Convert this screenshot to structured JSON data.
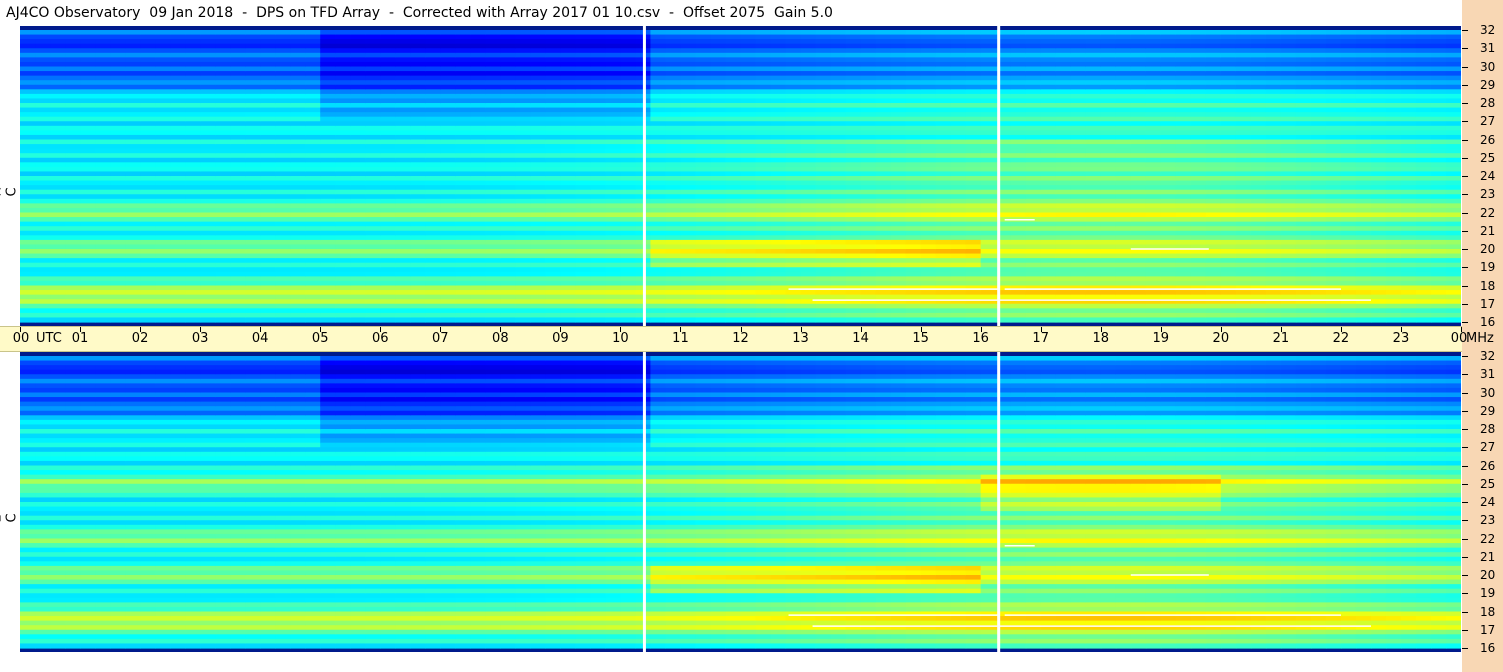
{
  "header": {
    "title": "AJ4CO Observatory  09 Jan 2018  -  DPS on TFD Array  -  Corrected with Array 2017 01 10.csv  -  Offset 2075  Gain 5.0"
  },
  "panels": {
    "top_label": "R  C  P",
    "bottom_label": "L  C  P"
  },
  "axis": {
    "time_unit": "UTC",
    "freq_unit": "MHz",
    "time_ticks": [
      "00",
      "01",
      "02",
      "03",
      "04",
      "05",
      "06",
      "07",
      "08",
      "09",
      "10",
      "11",
      "12",
      "13",
      "14",
      "15",
      "16",
      "17",
      "18",
      "19",
      "20",
      "21",
      "22",
      "23",
      "00"
    ],
    "freq_ticks": [
      "32",
      "31",
      "30",
      "29",
      "28",
      "27",
      "26",
      "25",
      "24",
      "23",
      "22",
      "21",
      "20",
      "19",
      "18",
      "17",
      "16"
    ]
  },
  "chart_data": {
    "type": "heatmap",
    "title": "AJ4CO Observatory  09 Jan 2018  -  DPS on TFD Array  -  Corrected with Array 2017 01 10.csv  -  Offset 2075  Gain 5.0",
    "x_range_utc_hours": [
      0,
      24
    ],
    "y_range_mhz": [
      16,
      32
    ],
    "series": [
      {
        "name": "R  C  P",
        "dark_band_mhz": [
          28.5,
          31.5
        ],
        "bright_bands_mhz": [
          22,
          20,
          17.8,
          17.2
        ],
        "file_break_utc_hours": [
          10.4,
          16.3
        ]
      },
      {
        "name": "L  C  P",
        "dark_band_mhz": [
          28.5,
          31.5
        ],
        "bright_bands_mhz": [
          25,
          22,
          20,
          17.8,
          17.2
        ],
        "file_break_utc_hours": [
          10.4,
          16.3
        ]
      }
    ],
    "colormap": [
      "#00007f",
      "#0000ff",
      "#0080ff",
      "#00ffff",
      "#80ff80",
      "#ffff00",
      "#ff8000",
      "#ff0000",
      "#ffffff"
    ]
  }
}
